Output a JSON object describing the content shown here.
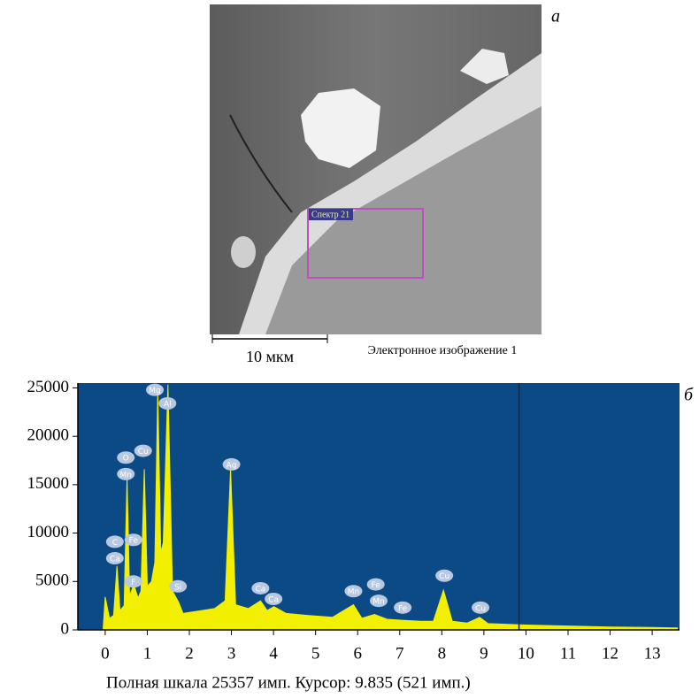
{
  "figure_a": {
    "label": "а",
    "scale_bar": "10 мкм",
    "caption": "Электронное изображение 1",
    "spectrum_box": "Спектр 21"
  },
  "chart_data": {
    "type": "area",
    "panel_label": "б",
    "x": [
      -0.05,
      0.0,
      0.1,
      0.2,
      0.28,
      0.35,
      0.45,
      0.52,
      0.58,
      0.68,
      0.78,
      0.85,
      0.93,
      1.0,
      1.1,
      1.18,
      1.25,
      1.32,
      1.38,
      1.49,
      1.6,
      1.74,
      1.85,
      2.0,
      2.3,
      2.6,
      2.85,
      2.98,
      3.1,
      3.4,
      3.69,
      3.85,
      4.01,
      4.3,
      4.8,
      5.4,
      5.9,
      6.1,
      6.4,
      6.7,
      7.06,
      7.5,
      7.8,
      8.04,
      8.25,
      8.6,
      8.9,
      9.1,
      10,
      11,
      12,
      13,
      13.6
    ],
    "values": [
      0,
      3400,
      1200,
      1500,
      6600,
      2000,
      2500,
      15700,
      3500,
      4700,
      3300,
      4000,
      16600,
      4500,
      5000,
      7000,
      24800,
      8000,
      9000,
      25357,
      4000,
      2900,
      1700,
      1800,
      2000,
      2200,
      3000,
      16600,
      2600,
      2200,
      3000,
      2000,
      2400,
      1700,
      1500,
      1300,
      2600,
      1200,
      1600,
      1100,
      1000,
      900,
      900,
      4100,
      900,
      700,
      1300,
      650,
      500,
      400,
      300,
      250,
      200
    ],
    "color": "#f2f000",
    "background": "#0c4a86",
    "xlim": [
      -0.65,
      13.65
    ],
    "ylim": [
      0,
      25500
    ],
    "xticks": [
      0,
      1,
      2,
      3,
      4,
      5,
      6,
      7,
      8,
      9,
      10,
      11,
      12,
      13
    ],
    "yticks": [
      0,
      5000,
      10000,
      15000,
      20000,
      25000
    ],
    "cursor": 9.835,
    "peak_labels": [
      {
        "label": "Mg",
        "x": 1.18,
        "y": 24800
      },
      {
        "label": "Al",
        "x": 1.48,
        "y": 23400
      },
      {
        "label": "O",
        "x": 0.49,
        "y": 17800
      },
      {
        "label": "Cu",
        "x": 0.9,
        "y": 18500
      },
      {
        "label": "Mn",
        "x": 0.49,
        "y": 16100
      },
      {
        "label": "Ag",
        "x": 3.0,
        "y": 17100
      },
      {
        "label": "C",
        "x": 0.23,
        "y": 9100
      },
      {
        "label": "Fe",
        "x": 0.67,
        "y": 9300
      },
      {
        "label": "Ca",
        "x": 0.23,
        "y": 7400
      },
      {
        "label": "F",
        "x": 0.67,
        "y": 5000
      },
      {
        "label": "Si",
        "x": 1.73,
        "y": 4500
      },
      {
        "label": "Ca",
        "x": 3.69,
        "y": 4300
      },
      {
        "label": "Ca",
        "x": 4.0,
        "y": 3200
      },
      {
        "label": "Mn",
        "x": 5.9,
        "y": 4000
      },
      {
        "label": "Fe",
        "x": 6.43,
        "y": 4700
      },
      {
        "label": "Mn",
        "x": 6.5,
        "y": 3000
      },
      {
        "label": "Fe",
        "x": 7.07,
        "y": 2300
      },
      {
        "label": "Cu",
        "x": 8.06,
        "y": 5600
      },
      {
        "label": "Cu",
        "x": 8.92,
        "y": 2300
      }
    ],
    "footer": "Полная шкала 25357 имп. Курсор: 9.835 (521 имп.)"
  }
}
